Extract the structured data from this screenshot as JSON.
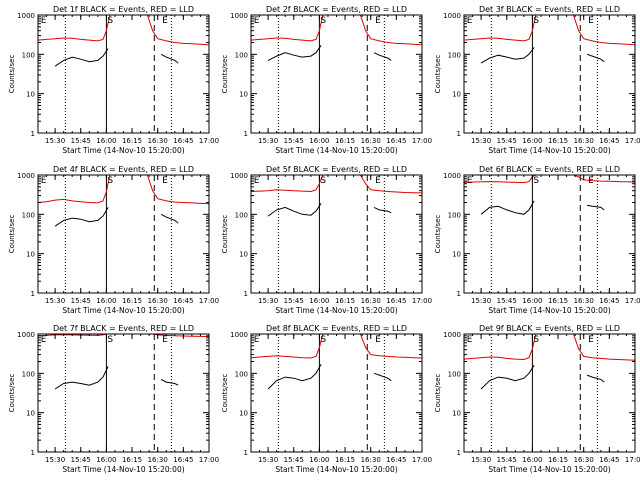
{
  "figure": {
    "page_background": "#ffffff",
    "colors": {
      "events": "#000000",
      "lld": "#e00000",
      "axes": "#000000"
    }
  },
  "chart_data": [
    {
      "type": "line",
      "title": "Det 1f BLACK = Events, RED = LLD",
      "xlabel": "Start Time (14-Nov-10 15:20:00)",
      "ylabel": "Counts/sec",
      "xticks": [
        "15:30",
        "15:45",
        "16:00",
        "16:15",
        "16:30",
        "16:45",
        "17:00"
      ],
      "yticks": [
        "1",
        "10",
        "100",
        "1000"
      ],
      "ylim": [
        1,
        1000
      ],
      "yscale": "log",
      "markers": [
        "E",
        "S",
        "E"
      ],
      "series": [
        {
          "name": "Events",
          "color": "#000000",
          "x": [
            "15:30",
            "15:35",
            "15:40",
            "15:45",
            "15:50",
            "15:55",
            "15:58",
            "16:01",
            "16:32",
            "16:35",
            "16:40",
            "16:42"
          ],
          "values": [
            50,
            70,
            85,
            75,
            65,
            70,
            90,
            140,
            100,
            85,
            70,
            60
          ]
        },
        {
          "name": "LLD",
          "color": "#e00000",
          "x": [
            "15:20",
            "15:25",
            "15:30",
            "15:35",
            "15:40",
            "15:45",
            "15:50",
            "15:55",
            "15:58",
            "16:00",
            "16:02",
            "16:24",
            "16:27",
            "16:30",
            "16:35",
            "16:40",
            "16:45",
            "16:50",
            "16:55",
            "17:00"
          ],
          "values": [
            230,
            240,
            250,
            260,
            255,
            240,
            230,
            220,
            240,
            400,
            1000,
            1000,
            400,
            250,
            220,
            200,
            190,
            185,
            180,
            175
          ]
        }
      ]
    },
    {
      "type": "line",
      "title": "Det 2f BLACK = Events, RED = LLD",
      "xlabel": "Start Time (14-Nov-10 15:20:00)",
      "ylabel": "Counts/sec",
      "xticks": [
        "15:30",
        "15:45",
        "16:00",
        "16:15",
        "16:30",
        "16:45",
        "17:00"
      ],
      "yticks": [
        "1",
        "10",
        "100",
        "1000"
      ],
      "ylim": [
        1,
        1000
      ],
      "yscale": "log",
      "markers": [
        "E",
        "S",
        "E"
      ],
      "series": [
        {
          "name": "Events",
          "color": "#000000",
          "x": [
            "15:30",
            "15:35",
            "15:40",
            "15:45",
            "15:50",
            "15:55",
            "15:58",
            "16:01",
            "16:32",
            "16:35",
            "16:40",
            "16:42"
          ],
          "values": [
            70,
            90,
            110,
            95,
            85,
            90,
            110,
            170,
            110,
            95,
            80,
            70
          ]
        },
        {
          "name": "LLD",
          "color": "#e00000",
          "x": [
            "15:20",
            "15:25",
            "15:30",
            "15:35",
            "15:40",
            "15:45",
            "15:50",
            "15:55",
            "15:58",
            "16:00",
            "16:02",
            "16:24",
            "16:27",
            "16:30",
            "16:35",
            "16:40",
            "16:45",
            "16:50",
            "16:55",
            "17:00"
          ],
          "values": [
            230,
            240,
            250,
            260,
            255,
            240,
            230,
            220,
            240,
            400,
            1000,
            1000,
            400,
            250,
            220,
            200,
            190,
            185,
            180,
            175
          ]
        }
      ]
    },
    {
      "type": "line",
      "title": "Det 3f BLACK = Events, RED = LLD",
      "xlabel": "Start Time (14-Nov-10 15:20:00)",
      "ylabel": "Counts/sec",
      "xticks": [
        "15:30",
        "15:45",
        "16:00",
        "16:15",
        "16:30",
        "16:45",
        "17:00"
      ],
      "yticks": [
        "1",
        "10",
        "100",
        "1000"
      ],
      "ylim": [
        1,
        1000
      ],
      "yscale": "log",
      "markers": [
        "E",
        "S",
        "E"
      ],
      "series": [
        {
          "name": "Events",
          "color": "#000000",
          "x": [
            "15:30",
            "15:35",
            "15:40",
            "15:45",
            "15:50",
            "15:55",
            "15:58",
            "16:01",
            "16:32",
            "16:35",
            "16:40",
            "16:42"
          ],
          "values": [
            60,
            80,
            95,
            85,
            75,
            80,
            100,
            150,
            100,
            90,
            75,
            65
          ]
        },
        {
          "name": "LLD",
          "color": "#e00000",
          "x": [
            "15:20",
            "15:25",
            "15:30",
            "15:35",
            "15:40",
            "15:45",
            "15:50",
            "15:55",
            "15:58",
            "16:00",
            "16:02",
            "16:24",
            "16:27",
            "16:30",
            "16:35",
            "16:40",
            "16:45",
            "16:50",
            "16:55",
            "17:00"
          ],
          "values": [
            230,
            240,
            250,
            260,
            255,
            240,
            230,
            220,
            240,
            400,
            1000,
            1000,
            400,
            250,
            220,
            200,
            190,
            185,
            180,
            175
          ]
        }
      ]
    },
    {
      "type": "line",
      "title": "Det 4f BLACK = Events, RED = LLD",
      "xlabel": "Start Time (14-Nov-10 15:20:00)",
      "ylabel": "Counts/sec",
      "xticks": [
        "15:30",
        "15:45",
        "16:00",
        "16:15",
        "16:30",
        "16:45",
        "17:00"
      ],
      "yticks": [
        "1",
        "10",
        "100",
        "1000"
      ],
      "ylim": [
        1,
        1000
      ],
      "yscale": "log",
      "markers": [
        "E",
        "S",
        "E"
      ],
      "series": [
        {
          "name": "Events",
          "color": "#000000",
          "x": [
            "15:30",
            "15:35",
            "15:40",
            "15:45",
            "15:50",
            "15:55",
            "15:58",
            "16:01",
            "16:32",
            "16:35",
            "16:40",
            "16:42"
          ],
          "values": [
            50,
            70,
            80,
            75,
            65,
            70,
            90,
            150,
            100,
            85,
            70,
            60
          ]
        },
        {
          "name": "LLD",
          "color": "#e00000",
          "x": [
            "15:20",
            "15:25",
            "15:30",
            "15:35",
            "15:40",
            "15:45",
            "15:50",
            "15:55",
            "15:58",
            "16:00",
            "16:02",
            "16:24",
            "16:27",
            "16:30",
            "16:35",
            "16:40",
            "16:45",
            "16:50",
            "16:55",
            "17:00"
          ],
          "values": [
            200,
            210,
            230,
            240,
            220,
            210,
            200,
            195,
            220,
            380,
            1000,
            1000,
            400,
            250,
            220,
            205,
            200,
            195,
            190,
            185
          ]
        }
      ]
    },
    {
      "type": "line",
      "title": "Det 5f BLACK = Events, RED = LLD",
      "xlabel": "Start Time (14-Nov-10 15:20:00)",
      "ylabel": "Counts/sec",
      "xticks": [
        "15:30",
        "15:45",
        "16:00",
        "16:15",
        "16:30",
        "16:45",
        "17:00"
      ],
      "yticks": [
        "1",
        "10",
        "100",
        "1000"
      ],
      "ylim": [
        1,
        1000
      ],
      "yscale": "log",
      "markers": [
        "E",
        "S",
        "E"
      ],
      "series": [
        {
          "name": "Events",
          "color": "#000000",
          "x": [
            "15:30",
            "15:35",
            "15:40",
            "15:45",
            "15:50",
            "15:55",
            "15:58",
            "16:01",
            "16:32",
            "16:35",
            "16:40",
            "16:42"
          ],
          "values": [
            90,
            130,
            150,
            120,
            100,
            95,
            120,
            190,
            150,
            130,
            120,
            110
          ]
        },
        {
          "name": "LLD",
          "color": "#e00000",
          "x": [
            "15:20",
            "15:25",
            "15:30",
            "15:35",
            "15:40",
            "15:45",
            "15:50",
            "15:55",
            "15:58",
            "16:00",
            "16:02",
            "16:24",
            "16:27",
            "16:30",
            "16:35",
            "16:40",
            "16:45",
            "16:50",
            "16:55",
            "17:00"
          ],
          "values": [
            380,
            390,
            400,
            420,
            410,
            400,
            390,
            380,
            420,
            600,
            1000,
            1000,
            600,
            420,
            400,
            380,
            370,
            360,
            355,
            350
          ]
        }
      ]
    },
    {
      "type": "line",
      "title": "Det 6f BLACK = Events, RED = LLD",
      "xlabel": "Start Time (14-Nov-10 15:20:00)",
      "ylabel": "Counts/sec",
      "xticks": [
        "15:30",
        "15:45",
        "16:00",
        "16:15",
        "16:30",
        "16:45",
        "17:00"
      ],
      "yticks": [
        "1",
        "10",
        "100",
        "1000"
      ],
      "ylim": [
        1,
        1000
      ],
      "yscale": "log",
      "markers": [
        "E",
        "S",
        "E"
      ],
      "series": [
        {
          "name": "Events",
          "color": "#000000",
          "x": [
            "15:30",
            "15:35",
            "15:40",
            "15:45",
            "15:50",
            "15:55",
            "15:58",
            "16:01",
            "16:32",
            "16:35",
            "16:40",
            "16:42"
          ],
          "values": [
            100,
            150,
            160,
            130,
            110,
            100,
            130,
            220,
            170,
            160,
            150,
            130
          ]
        },
        {
          "name": "LLD",
          "color": "#e00000",
          "x": [
            "15:20",
            "15:25",
            "15:30",
            "15:35",
            "15:40",
            "15:45",
            "15:50",
            "15:55",
            "15:58",
            "16:00",
            "16:02",
            "16:24",
            "16:27",
            "16:30",
            "16:35",
            "16:40",
            "16:45",
            "16:50",
            "16:55",
            "17:00"
          ],
          "values": [
            650,
            660,
            670,
            680,
            670,
            660,
            650,
            640,
            680,
            900,
            1000,
            1000,
            900,
            750,
            720,
            700,
            690,
            680,
            670,
            660
          ]
        }
      ]
    },
    {
      "type": "line",
      "title": "Det 7f BLACK = Events, RED = LLD",
      "xlabel": "Start Time (14-Nov-10 15:20:00)",
      "ylabel": "Counts/sec",
      "xticks": [
        "15:30",
        "15:45",
        "16:00",
        "16:15",
        "16:30",
        "16:45",
        "17:00"
      ],
      "yticks": [
        "1",
        "10",
        "100",
        "1000"
      ],
      "ylim": [
        1,
        1000
      ],
      "yscale": "log",
      "markers": [
        "E",
        "S",
        "E"
      ],
      "series": [
        {
          "name": "Events",
          "color": "#000000",
          "x": [
            "15:30",
            "15:35",
            "15:40",
            "15:45",
            "15:50",
            "15:55",
            "15:58",
            "16:01",
            "16:32",
            "16:35",
            "16:40",
            "16:42"
          ],
          "values": [
            40,
            55,
            60,
            55,
            50,
            60,
            80,
            150,
            70,
            60,
            55,
            50
          ]
        },
        {
          "name": "LLD",
          "color": "#e00000",
          "x": [
            "15:20",
            "15:25",
            "15:30",
            "15:35",
            "15:40",
            "15:45",
            "15:50",
            "15:55",
            "15:58",
            "16:00",
            "16:02",
            "16:24",
            "16:27",
            "16:30",
            "16:35",
            "16:40",
            "16:45",
            "16:50",
            "16:55",
            "17:00"
          ],
          "values": [
            900,
            920,
            950,
            960,
            950,
            940,
            930,
            920,
            950,
            1000,
            1000,
            1000,
            1000,
            950,
            920,
            900,
            890,
            880,
            870,
            860
          ]
        }
      ]
    },
    {
      "type": "line",
      "title": "Det 8f BLACK = Events, RED = LLD",
      "xlabel": "Start Time (14-Nov-10 15:20:00)",
      "ylabel": "Counts/sec",
      "xticks": [
        "15:30",
        "15:45",
        "16:00",
        "16:15",
        "16:30",
        "16:45",
        "17:00"
      ],
      "yticks": [
        "1",
        "10",
        "100",
        "1000"
      ],
      "ylim": [
        1,
        1000
      ],
      "yscale": "log",
      "markers": [
        "E",
        "S",
        "E"
      ],
      "series": [
        {
          "name": "Events",
          "color": "#000000",
          "x": [
            "15:30",
            "15:35",
            "15:40",
            "15:45",
            "15:50",
            "15:55",
            "15:58",
            "16:01",
            "16:32",
            "16:35",
            "16:40",
            "16:42"
          ],
          "values": [
            40,
            65,
            80,
            75,
            65,
            75,
            100,
            170,
            100,
            90,
            75,
            65
          ]
        },
        {
          "name": "LLD",
          "color": "#e00000",
          "x": [
            "15:20",
            "15:25",
            "15:30",
            "15:35",
            "15:40",
            "15:45",
            "15:50",
            "15:55",
            "15:58",
            "16:00",
            "16:02",
            "16:24",
            "16:27",
            "16:30",
            "16:35",
            "16:40",
            "16:45",
            "16:50",
            "16:55",
            "17:00"
          ],
          "values": [
            250,
            260,
            270,
            280,
            270,
            260,
            250,
            245,
            270,
            450,
            1000,
            1000,
            450,
            300,
            280,
            270,
            260,
            255,
            250,
            245
          ]
        }
      ]
    },
    {
      "type": "line",
      "title": "Det 9f BLACK = Events, RED = LLD",
      "xlabel": "Start Time (14-Nov-10 15:20:00)",
      "ylabel": "Counts/sec",
      "xticks": [
        "15:30",
        "15:45",
        "16:00",
        "16:15",
        "16:30",
        "16:45",
        "17:00"
      ],
      "yticks": [
        "1",
        "10",
        "100",
        "1000"
      ],
      "ylim": [
        1,
        1000
      ],
      "yscale": "log",
      "markers": [
        "E",
        "S",
        "E"
      ],
      "series": [
        {
          "name": "Events",
          "color": "#000000",
          "x": [
            "15:30",
            "15:35",
            "15:40",
            "15:45",
            "15:50",
            "15:55",
            "15:58",
            "16:01",
            "16:32",
            "16:35",
            "16:40",
            "16:42"
          ],
          "values": [
            40,
            65,
            80,
            75,
            65,
            75,
            100,
            160,
            90,
            80,
            70,
            60
          ]
        },
        {
          "name": "LLD",
          "color": "#e00000",
          "x": [
            "15:20",
            "15:25",
            "15:30",
            "15:35",
            "15:40",
            "15:45",
            "15:50",
            "15:55",
            "15:58",
            "16:00",
            "16:02",
            "16:24",
            "16:27",
            "16:30",
            "16:35",
            "16:40",
            "16:45",
            "16:50",
            "16:55",
            "17:00"
          ],
          "values": [
            230,
            240,
            250,
            260,
            255,
            240,
            230,
            225,
            250,
            420,
            1000,
            1000,
            420,
            270,
            250,
            240,
            230,
            225,
            220,
            215
          ]
        }
      ]
    }
  ]
}
